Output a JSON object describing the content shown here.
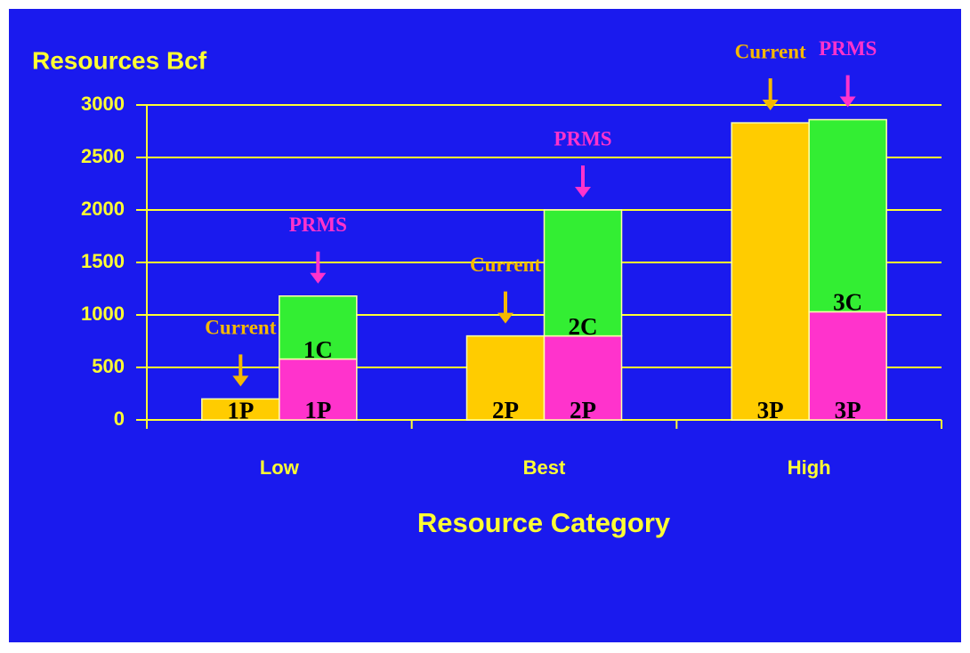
{
  "chart_data": {
    "type": "bar",
    "stacked": true,
    "title": "Resources Bcf",
    "x_label": "Resource Category",
    "categories": [
      "Low",
      "Best",
      "High"
    ],
    "series": [
      {
        "name": "Current",
        "stack": 0,
        "color": "#ffcc00",
        "name_color": "#f5b800",
        "values": [
          200,
          800,
          2830
        ],
        "value_labels": [
          "1P",
          "2P",
          "3P"
        ]
      },
      {
        "name": "PRMS",
        "stack": 1,
        "color": "#ff33cc",
        "name_color": "#ff33cc",
        "values": [
          580,
          800,
          1030
        ],
        "value_labels": [
          "1P",
          "2P",
          "3P"
        ]
      },
      {
        "stack": 1,
        "color": "#33ee33",
        "values": [
          600,
          1200,
          1830
        ],
        "value_labels": [
          "1C",
          "2C",
          "3C"
        ]
      }
    ],
    "ylim": [
      0,
      3000
    ],
    "yticks": [
      0,
      500,
      1000,
      1500,
      2000,
      2500,
      3000
    ],
    "grid": true
  }
}
